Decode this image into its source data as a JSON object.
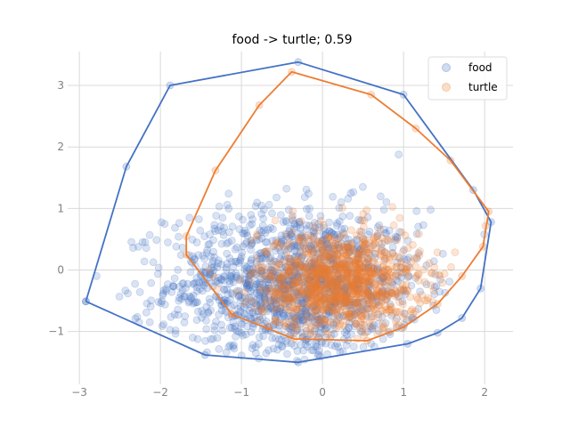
{
  "chart_data": {
    "type": "scatter",
    "title": "food -> turtle; 0.59",
    "xlabel": "",
    "ylabel": "",
    "xlim": [
      -3.1,
      2.35
    ],
    "ylim": [
      -1.8,
      3.55
    ],
    "xticks": [
      -3,
      -2,
      -1,
      0,
      1,
      2
    ],
    "yticks": [
      -1,
      0,
      1,
      2,
      3
    ],
    "xtick_labels": [
      "−3",
      "−2",
      "−1",
      "0",
      "1",
      "2"
    ],
    "ytick_labels": [
      "−1",
      "0",
      "1",
      "2",
      "3"
    ],
    "grid": true,
    "legend_position": "top-right",
    "colors": {
      "food": "#4472c4",
      "turtle": "#ed7d31",
      "grid": "#d9d9d9"
    },
    "series": [
      {
        "name": "food",
        "color": "#4472c4",
        "cloud": {
          "center": [
            -0.35,
            -0.25
          ],
          "spread": [
            0.78,
            0.62
          ],
          "count": 1400
        },
        "hull": [
          [
            -2.92,
            -0.51
          ],
          [
            -1.45,
            -1.38
          ],
          [
            -0.3,
            -1.5
          ],
          [
            1.05,
            -1.2
          ],
          [
            1.42,
            -1.02
          ],
          [
            1.72,
            -0.78
          ],
          [
            1.95,
            -0.3
          ],
          [
            2.08,
            0.78
          ],
          [
            1.86,
            1.3
          ],
          [
            1.0,
            2.85
          ],
          [
            -0.3,
            3.38
          ],
          [
            -1.88,
            3.0
          ],
          [
            -2.42,
            1.68
          ],
          [
            -2.92,
            -0.51
          ]
        ]
      },
      {
        "name": "turtle",
        "color": "#ed7d31",
        "cloud": {
          "center": [
            0.2,
            -0.2
          ],
          "spread": [
            0.5,
            0.42
          ],
          "count": 1100
        },
        "hull": [
          [
            -1.12,
            -0.72
          ],
          [
            -0.35,
            -1.12
          ],
          [
            0.55,
            -1.15
          ],
          [
            1.0,
            -0.93
          ],
          [
            1.42,
            -0.55
          ],
          [
            1.72,
            -0.1
          ],
          [
            1.98,
            0.38
          ],
          [
            2.05,
            0.95
          ],
          [
            1.58,
            1.78
          ],
          [
            1.15,
            2.3
          ],
          [
            0.6,
            2.85
          ],
          [
            -0.38,
            3.22
          ],
          [
            -0.78,
            2.68
          ],
          [
            -1.32,
            1.62
          ],
          [
            -1.68,
            0.55
          ],
          [
            -1.68,
            0.25
          ],
          [
            -1.12,
            -0.72
          ]
        ]
      }
    ]
  }
}
